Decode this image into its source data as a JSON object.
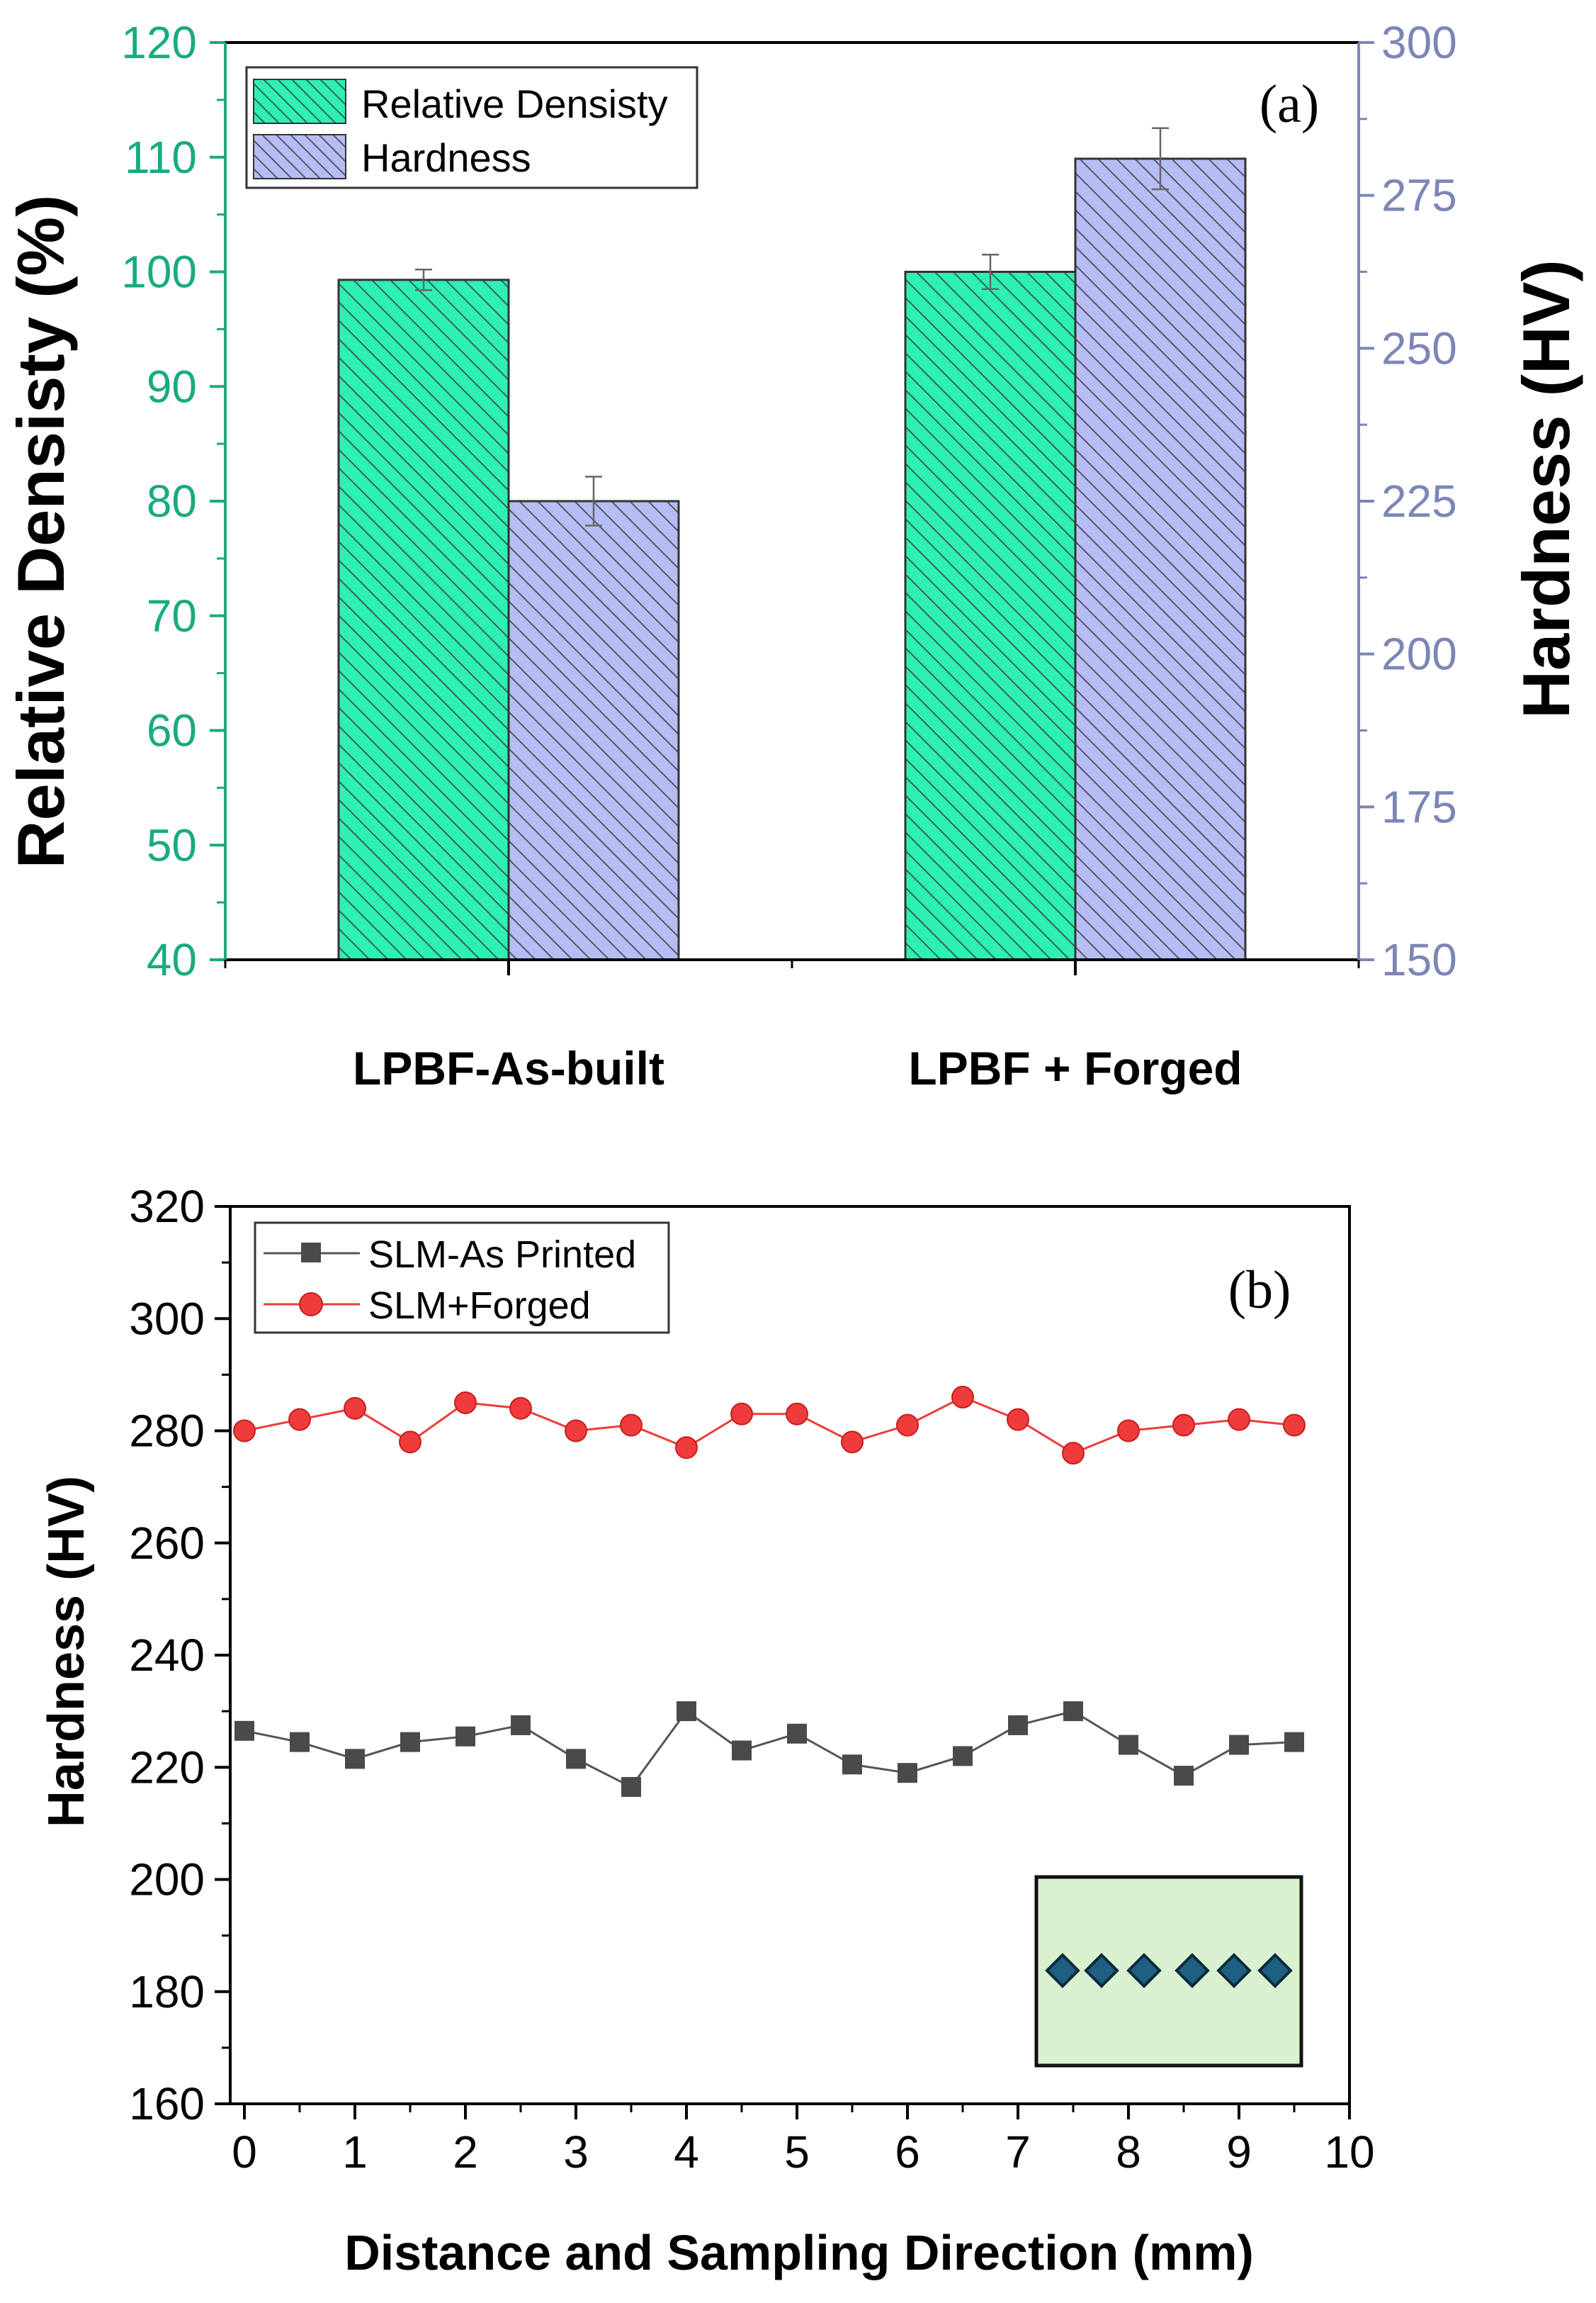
{
  "colors": {
    "density": "#2FF0B4",
    "hardness": "#B6BCF4",
    "density_axis": "#1AAA80",
    "hardness_axis": "#7C86B6",
    "series_printed": "#4a4a4a",
    "series_forged": "#EF3B3B",
    "inset_fill": "#D9F1CF",
    "inset_marker": "#1E5F82"
  },
  "chart_data": [
    {
      "type": "bar",
      "panel_label": "(a)",
      "categories": [
        "LPBF-As-built",
        "LPBF + Forged"
      ],
      "series": [
        {
          "name": "Relative Densisty",
          "axis": "left",
          "values": [
            99.3,
            100.0
          ],
          "errors": [
            0.9,
            1.5
          ]
        },
        {
          "name": "Hardness",
          "axis": "right",
          "values": [
            225,
            281
          ],
          "errors": [
            4,
            5
          ]
        }
      ],
      "ylabel_left": "Relative Densisty (%)",
      "ylim_left": [
        40,
        120
      ],
      "yticks_left": [
        "40",
        "50",
        "60",
        "70",
        "80",
        "90",
        "100",
        "110",
        "120"
      ],
      "ylabel_right": "Hardness (HV)",
      "ylim_right": [
        150,
        300
      ],
      "yticks_right": [
        "150",
        "175",
        "200",
        "225",
        "250",
        "275",
        "300"
      ],
      "legend_position": "top-left"
    },
    {
      "type": "line",
      "panel_label": "(b)",
      "x": [
        0,
        0.5,
        1,
        1.5,
        2,
        2.5,
        3,
        3.5,
        4,
        4.5,
        5,
        5.5,
        6,
        6.5,
        7,
        7.5,
        8,
        8.5,
        9,
        9.5
      ],
      "series": [
        {
          "name": "SLM-As Printed",
          "marker": "square",
          "values": [
            226.5,
            224.5,
            221.5,
            224.5,
            225.5,
            227.5,
            221.5,
            216.5,
            230,
            223,
            226,
            220.5,
            219,
            222,
            227.5,
            230,
            224,
            218.5,
            224,
            224.5
          ]
        },
        {
          "name": "SLM+Forged",
          "marker": "circle",
          "values": [
            280,
            282,
            284,
            278,
            285,
            284,
            280,
            281,
            277,
            283,
            283,
            278,
            281,
            286,
            282,
            276,
            280,
            281,
            282,
            281
          ]
        }
      ],
      "xlabel": "Distance and Sampling Direction (mm)",
      "ylabel": "Hardness (HV)",
      "xlim": [
        0,
        10
      ],
      "xticks": [
        "0",
        "1",
        "2",
        "3",
        "4",
        "5",
        "6",
        "7",
        "8",
        "9",
        "10"
      ],
      "ylim": [
        160,
        320
      ],
      "yticks": [
        "160",
        "180",
        "200",
        "220",
        "240",
        "260",
        "280",
        "300",
        "320"
      ],
      "legend_position": "top-left",
      "inset": "green sample rectangle with six diamond indentation markers"
    }
  ]
}
